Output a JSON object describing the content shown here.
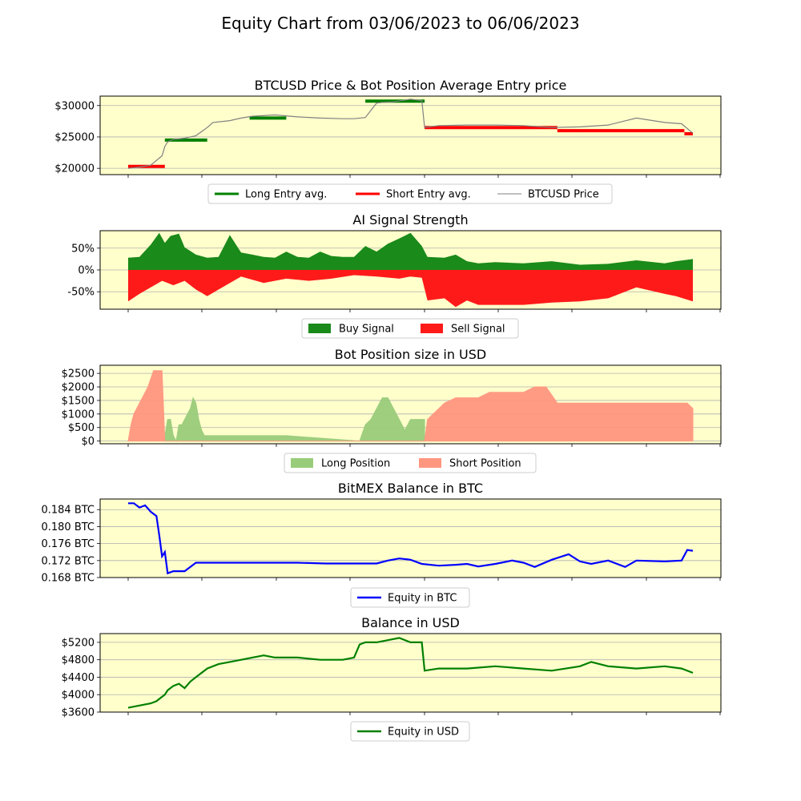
{
  "title": "Equity Chart from 03/06/2023 to 06/06/2023",
  "colors": {
    "panel_bg": "#ffffcc",
    "long": "#008000",
    "short": "#ff0000",
    "price": "#808080",
    "buy": "#1a8a1a",
    "sell": "#ff1a1a",
    "long_pos": "#99cc7a",
    "short_pos": "#ff9680",
    "btc": "#0000ff",
    "usd": "#008000"
  },
  "chart_data": [
    {
      "type": "line",
      "title": "BTCUSD Price & Bot Position Average Entry price",
      "ylim": [
        19000,
        31500
      ],
      "yticks": [
        20000,
        25000,
        30000
      ],
      "ytick_labels": [
        "$20000",
        "$25000",
        "$30000"
      ],
      "grid": true,
      "legend": {
        "placement": "bottom-center",
        "entries": [
          "Long Entry avg.",
          "Short Entry avg.",
          "BTCUSD Price"
        ]
      },
      "series": [
        {
          "name": "BTCUSD Price",
          "x": [
            0,
            0.02,
            0.04,
            0.06,
            0.065,
            0.07,
            0.08,
            0.1,
            0.12,
            0.14,
            0.15,
            0.18,
            0.2,
            0.22,
            0.26,
            0.3,
            0.34,
            0.38,
            0.4,
            0.42,
            0.44,
            0.45,
            0.47,
            0.5,
            0.52,
            0.525,
            0.55,
            0.6,
            0.65,
            0.7,
            0.75,
            0.8,
            0.85,
            0.9,
            0.95,
            0.98,
            1.0
          ],
          "y": [
            20000,
            20200,
            20500,
            22000,
            23500,
            24200,
            24600,
            24800,
            25200,
            26500,
            27300,
            27600,
            28000,
            28300,
            28500,
            28200,
            28000,
            27900,
            27900,
            28100,
            30400,
            30500,
            30600,
            31000,
            30800,
            26500,
            26800,
            26900,
            26900,
            26800,
            26500,
            26600,
            26900,
            28000,
            27300,
            27100,
            25600
          ]
        },
        {
          "name": "Long Entry avg.",
          "segments": [
            {
              "x": [
                0.065,
                0.14
              ],
              "y": [
                24500,
                24500
              ]
            },
            {
              "x": [
                0.215,
                0.28
              ],
              "y": [
                28000,
                28000
              ]
            },
            {
              "x": [
                0.42,
                0.525
              ],
              "y": [
                30700,
                30700
              ]
            }
          ]
        },
        {
          "name": "Short Entry avg.",
          "segments": [
            {
              "x": [
                0,
                0.065
              ],
              "y": [
                20300,
                20300
              ]
            },
            {
              "x": [
                0.525,
                0.76
              ],
              "y": [
                26500,
                26500
              ]
            },
            {
              "x": [
                0.76,
                0.985
              ],
              "y": [
                26000,
                26000
              ]
            },
            {
              "x": [
                0.985,
                1.0
              ],
              "y": [
                25500,
                25500
              ]
            }
          ]
        }
      ]
    },
    {
      "type": "area",
      "title": "AI Signal Strength",
      "ylim": [
        -0.9,
        0.9
      ],
      "yticks": [
        -0.5,
        0,
        0.5
      ],
      "ytick_labels": [
        "-50%",
        "0%",
        "50%"
      ],
      "grid": true,
      "legend": {
        "placement": "bottom-center",
        "entries": [
          "Buy Signal",
          "Sell Signal"
        ]
      },
      "series": [
        {
          "name": "Buy Signal",
          "x": [
            0,
            0.02,
            0.04,
            0.055,
            0.065,
            0.075,
            0.09,
            0.1,
            0.12,
            0.14,
            0.16,
            0.18,
            0.2,
            0.22,
            0.24,
            0.26,
            0.28,
            0.3,
            0.32,
            0.34,
            0.36,
            0.38,
            0.4,
            0.42,
            0.44,
            0.46,
            0.48,
            0.5,
            0.52,
            0.53,
            0.56,
            0.58,
            0.6,
            0.62,
            0.65,
            0.7,
            0.75,
            0.8,
            0.85,
            0.9,
            0.95,
            0.97,
            1.0
          ],
          "y": [
            0.28,
            0.3,
            0.58,
            0.85,
            0.62,
            0.78,
            0.83,
            0.52,
            0.35,
            0.28,
            0.3,
            0.8,
            0.4,
            0.35,
            0.3,
            0.28,
            0.42,
            0.3,
            0.28,
            0.42,
            0.32,
            0.3,
            0.3,
            0.55,
            0.42,
            0.6,
            0.72,
            0.85,
            0.55,
            0.3,
            0.28,
            0.35,
            0.2,
            0.15,
            0.18,
            0.15,
            0.2,
            0.12,
            0.14,
            0.22,
            0.15,
            0.2,
            0.25
          ]
        },
        {
          "name": "Sell Signal",
          "x": [
            0,
            0.02,
            0.04,
            0.06,
            0.07,
            0.08,
            0.1,
            0.12,
            0.14,
            0.16,
            0.2,
            0.24,
            0.28,
            0.32,
            0.36,
            0.4,
            0.44,
            0.48,
            0.5,
            0.52,
            0.53,
            0.56,
            0.58,
            0.6,
            0.62,
            0.65,
            0.7,
            0.75,
            0.8,
            0.85,
            0.9,
            0.95,
            0.97,
            1.0
          ],
          "y": [
            -0.72,
            -0.55,
            -0.4,
            -0.25,
            -0.3,
            -0.35,
            -0.25,
            -0.45,
            -0.6,
            -0.45,
            -0.15,
            -0.3,
            -0.2,
            -0.25,
            -0.2,
            -0.12,
            -0.15,
            -0.2,
            -0.15,
            -0.18,
            -0.7,
            -0.65,
            -0.85,
            -0.7,
            -0.8,
            -0.8,
            -0.8,
            -0.75,
            -0.72,
            -0.65,
            -0.4,
            -0.55,
            -0.6,
            -0.72
          ]
        }
      ]
    },
    {
      "type": "area",
      "title": "Bot Position size in USD",
      "ylim": [
        -100,
        2800
      ],
      "yticks": [
        0,
        500,
        1000,
        1500,
        2000,
        2500
      ],
      "ytick_labels": [
        "$0",
        "$500",
        "$1000",
        "$1500",
        "$2000",
        "$2500"
      ],
      "grid": true,
      "legend": {
        "placement": "bottom-center",
        "entries": [
          "Long Position",
          "Short Position"
        ]
      },
      "series": [
        {
          "name": "Long Position",
          "x": [
            0.065,
            0.07,
            0.075,
            0.08,
            0.085,
            0.09,
            0.095,
            0.1,
            0.105,
            0.11,
            0.115,
            0.12,
            0.125,
            0.13,
            0.135,
            0.21,
            0.28,
            0.41,
            0.42,
            0.43,
            0.44,
            0.45,
            0.46,
            0.47,
            0.48,
            0.49,
            0.5,
            0.51,
            0.525
          ],
          "y": [
            200,
            800,
            800,
            200,
            0,
            600,
            600,
            800,
            1000,
            1200,
            1600,
            1400,
            800,
            400,
            200,
            200,
            200,
            0,
            600,
            800,
            1200,
            1600,
            1600,
            1200,
            800,
            400,
            800,
            800,
            800
          ]
        },
        {
          "name": "Short Position",
          "x": [
            0,
            0.005,
            0.01,
            0.015,
            0.02,
            0.025,
            0.03,
            0.035,
            0.04,
            0.045,
            0.05,
            0.055,
            0.06,
            0.065,
            0.525,
            0.53,
            0.54,
            0.55,
            0.56,
            0.58,
            0.6,
            0.62,
            0.64,
            0.66,
            0.68,
            0.7,
            0.72,
            0.74,
            0.76,
            0.8,
            0.85,
            0.9,
            0.95,
            0.99,
            1.0
          ],
          "y": [
            0,
            600,
            1000,
            1200,
            1400,
            1600,
            1800,
            2000,
            2300,
            2600,
            2600,
            2600,
            2600,
            0,
            0,
            800,
            1000,
            1200,
            1400,
            1600,
            1600,
            1600,
            1800,
            1800,
            1800,
            1800,
            2000,
            2000,
            1400,
            1400,
            1400,
            1400,
            1400,
            1400,
            1200
          ]
        }
      ]
    },
    {
      "type": "line",
      "title": "BitMEX Balance in BTC",
      "ylim": [
        0.168,
        0.1865
      ],
      "yticks": [
        0.168,
        0.172,
        0.176,
        0.18,
        0.184
      ],
      "ytick_labels": [
        "0.168 BTC",
        "0.172 BTC",
        "0.176 BTC",
        "0.180 BTC",
        "0.184 BTC"
      ],
      "grid": true,
      "legend": {
        "placement": "bottom-center",
        "entries": [
          "Equity in BTC"
        ]
      },
      "series": [
        {
          "name": "Equity in BTC",
          "x": [
            0,
            0.01,
            0.02,
            0.03,
            0.04,
            0.05,
            0.055,
            0.06,
            0.065,
            0.07,
            0.08,
            0.1,
            0.12,
            0.14,
            0.2,
            0.3,
            0.35,
            0.4,
            0.42,
            0.44,
            0.46,
            0.48,
            0.5,
            0.52,
            0.55,
            0.58,
            0.6,
            0.62,
            0.65,
            0.68,
            0.7,
            0.72,
            0.75,
            0.78,
            0.8,
            0.82,
            0.85,
            0.88,
            0.9,
            0.95,
            0.98,
            0.99,
            1.0
          ],
          "y": [
            0.1855,
            0.1855,
            0.1845,
            0.185,
            0.1835,
            0.1825,
            0.178,
            0.173,
            0.174,
            0.169,
            0.1695,
            0.1695,
            0.1715,
            0.1715,
            0.1715,
            0.1715,
            0.1713,
            0.1713,
            0.1713,
            0.1713,
            0.172,
            0.1725,
            0.1722,
            0.1712,
            0.1708,
            0.171,
            0.1712,
            0.1706,
            0.1712,
            0.172,
            0.1715,
            0.1705,
            0.1722,
            0.1735,
            0.1718,
            0.1712,
            0.172,
            0.1705,
            0.172,
            0.1718,
            0.172,
            0.1745,
            0.1743
          ]
        }
      ]
    },
    {
      "type": "line",
      "title": "Balance in USD",
      "ylim": [
        3600,
        5400
      ],
      "yticks": [
        3600,
        4000,
        4400,
        4800,
        5200
      ],
      "ytick_labels": [
        "$3600",
        "$4000",
        "$4400",
        "$4800",
        "$5200"
      ],
      "grid": true,
      "legend": {
        "placement": "bottom-center",
        "entries": [
          "Equity in USD"
        ]
      },
      "series": [
        {
          "name": "Equity in USD",
          "x": [
            0,
            0.02,
            0.04,
            0.05,
            0.06,
            0.065,
            0.07,
            0.08,
            0.09,
            0.1,
            0.11,
            0.12,
            0.14,
            0.16,
            0.18,
            0.2,
            0.22,
            0.24,
            0.26,
            0.3,
            0.34,
            0.38,
            0.4,
            0.41,
            0.42,
            0.44,
            0.46,
            0.48,
            0.5,
            0.52,
            0.525,
            0.55,
            0.6,
            0.65,
            0.7,
            0.75,
            0.8,
            0.82,
            0.85,
            0.9,
            0.95,
            0.98,
            1.0
          ],
          "y": [
            3700,
            3750,
            3800,
            3850,
            3950,
            4000,
            4100,
            4200,
            4250,
            4150,
            4300,
            4400,
            4600,
            4700,
            4750,
            4800,
            4850,
            4900,
            4850,
            4850,
            4800,
            4800,
            4850,
            5150,
            5200,
            5200,
            5250,
            5300,
            5200,
            5200,
            4550,
            4600,
            4600,
            4650,
            4600,
            4550,
            4650,
            4750,
            4650,
            4600,
            4650,
            4600,
            4500
          ]
        }
      ]
    }
  ]
}
